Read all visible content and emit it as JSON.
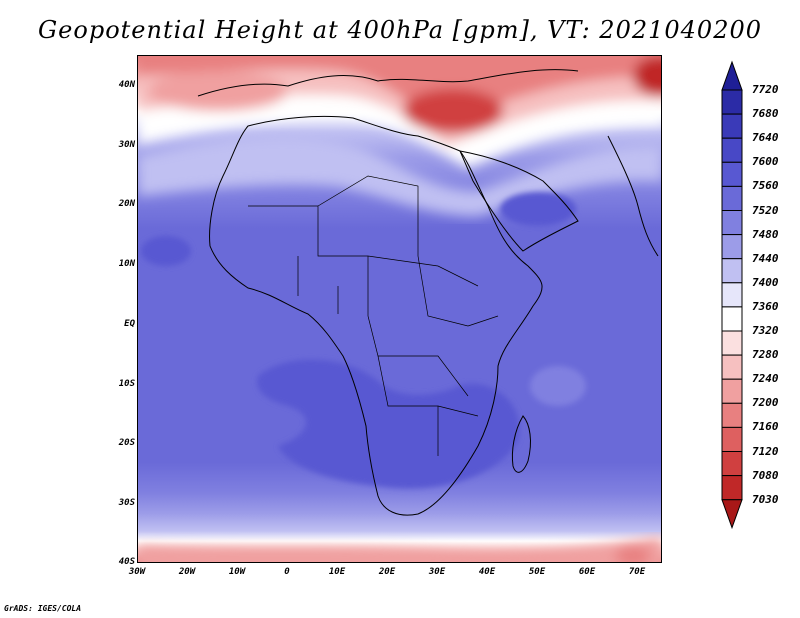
{
  "title": "Geopotential Height at 400hPa [gpm], VT: 2021040200",
  "credit": "GrADS: IGES/COLA",
  "lat_labels": [
    "40N",
    "30N",
    "20N",
    "10N",
    "EQ",
    "10S",
    "20S",
    "30S",
    "40S"
  ],
  "lon_labels": [
    "30W",
    "20W",
    "10W",
    "0",
    "10E",
    "20E",
    "30E",
    "40E",
    "50E",
    "60E",
    "70E"
  ],
  "colorbar": {
    "levels": [
      "7720",
      "7680",
      "7640",
      "7600",
      "7560",
      "7520",
      "7480",
      "7440",
      "7400",
      "7360",
      "7320",
      "7280",
      "7240",
      "7200",
      "7160",
      "7120",
      "7080",
      "7030"
    ],
    "colors": [
      "#1f1f96",
      "#2b2ba6",
      "#3a3ab8",
      "#4848c6",
      "#5858d2",
      "#6a6ad8",
      "#8080e0",
      "#9c9ce8",
      "#c0c0f2",
      "#e6e6fa",
      "#ffffff",
      "#fbe0e0",
      "#f6c0c0",
      "#f0a0a0",
      "#e88080",
      "#de6060",
      "#d04040",
      "#c02828",
      "#a81818"
    ]
  },
  "map": {
    "domain": {
      "lon_min": -30,
      "lon_max": 75,
      "lat_min": -40,
      "lat_max": 45
    },
    "background_color": "#6a6ad8",
    "coastline_color": "#000000"
  }
}
